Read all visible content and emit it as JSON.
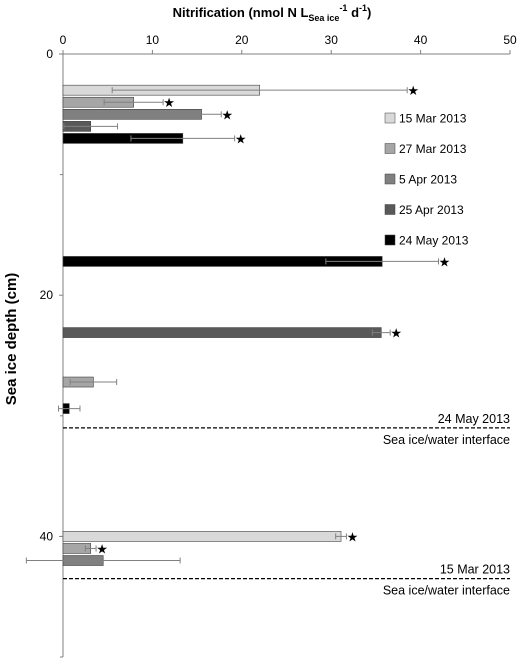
{
  "chart_data": {
    "type": "bar",
    "orientation": "horizontal",
    "title": {
      "prefix": "Nitrification (nmol N L",
      "sub": "Sea ice",
      "sup1": "-1",
      "mid": " d",
      "sup2": "-1",
      "suffix": ")"
    },
    "ylabel": "Sea ice depth (cm)",
    "xlim": [
      0,
      50
    ],
    "xticks": [
      "0",
      "10",
      "20",
      "30",
      "40",
      "50"
    ],
    "ylim": [
      0,
      50
    ],
    "yticks": [
      "0",
      "20",
      "40"
    ],
    "grid": false,
    "legend_placement": "right",
    "series": [
      {
        "name": "15 Mar 2013",
        "color": "#d9d9d9"
      },
      {
        "name": "27 Mar 2013",
        "color": "#a6a6a6"
      },
      {
        "name": "5 Apr 2013",
        "color": "#808080"
      },
      {
        "name": "25 Apr 2013",
        "color": "#595959"
      },
      {
        "name": "24 May 2013",
        "color": "#000000"
      }
    ],
    "bars": [
      {
        "series": 0,
        "depth": 3,
        "value": 22.0,
        "error": 16.5,
        "star": true
      },
      {
        "series": 1,
        "depth": 4,
        "value": 7.9,
        "error": 3.3,
        "star": true
      },
      {
        "series": 2,
        "depth": 5,
        "value": 15.5,
        "error": 2.2,
        "star": true
      },
      {
        "series": 3,
        "depth": 6,
        "value": 3.1,
        "error": 3.0,
        "star": false
      },
      {
        "series": 4,
        "depth": 7,
        "value": 13.4,
        "error": 5.8,
        "star": true
      },
      {
        "series": 4,
        "depth": 17.2,
        "value": 35.7,
        "error": 6.3,
        "star": true
      },
      {
        "series": 3,
        "depth": 23.1,
        "value": 35.6,
        "error": 1.0,
        "star": true
      },
      {
        "series": 1,
        "depth": 27.2,
        "value": 3.4,
        "error": 2.6,
        "star": false
      },
      {
        "series": 4,
        "depth": 29.4,
        "value": 0.7,
        "error": 1.2,
        "star": false
      },
      {
        "series": 0,
        "depth": 40.0,
        "value": 31.1,
        "error": 0.6,
        "star": true
      },
      {
        "series": 1,
        "depth": 41.0,
        "value": 3.1,
        "error": 0.6,
        "star": true
      },
      {
        "series": 2,
        "depth": 42.0,
        "value": 4.5,
        "error": 8.6,
        "star": false
      }
    ],
    "interfaces": [
      {
        "depth": 31,
        "date": "24 May 2013",
        "label": "Sea ice/water interface"
      },
      {
        "depth": 43.5,
        "date": "15 Mar 2013",
        "label": "Sea ice/water interface"
      }
    ]
  }
}
